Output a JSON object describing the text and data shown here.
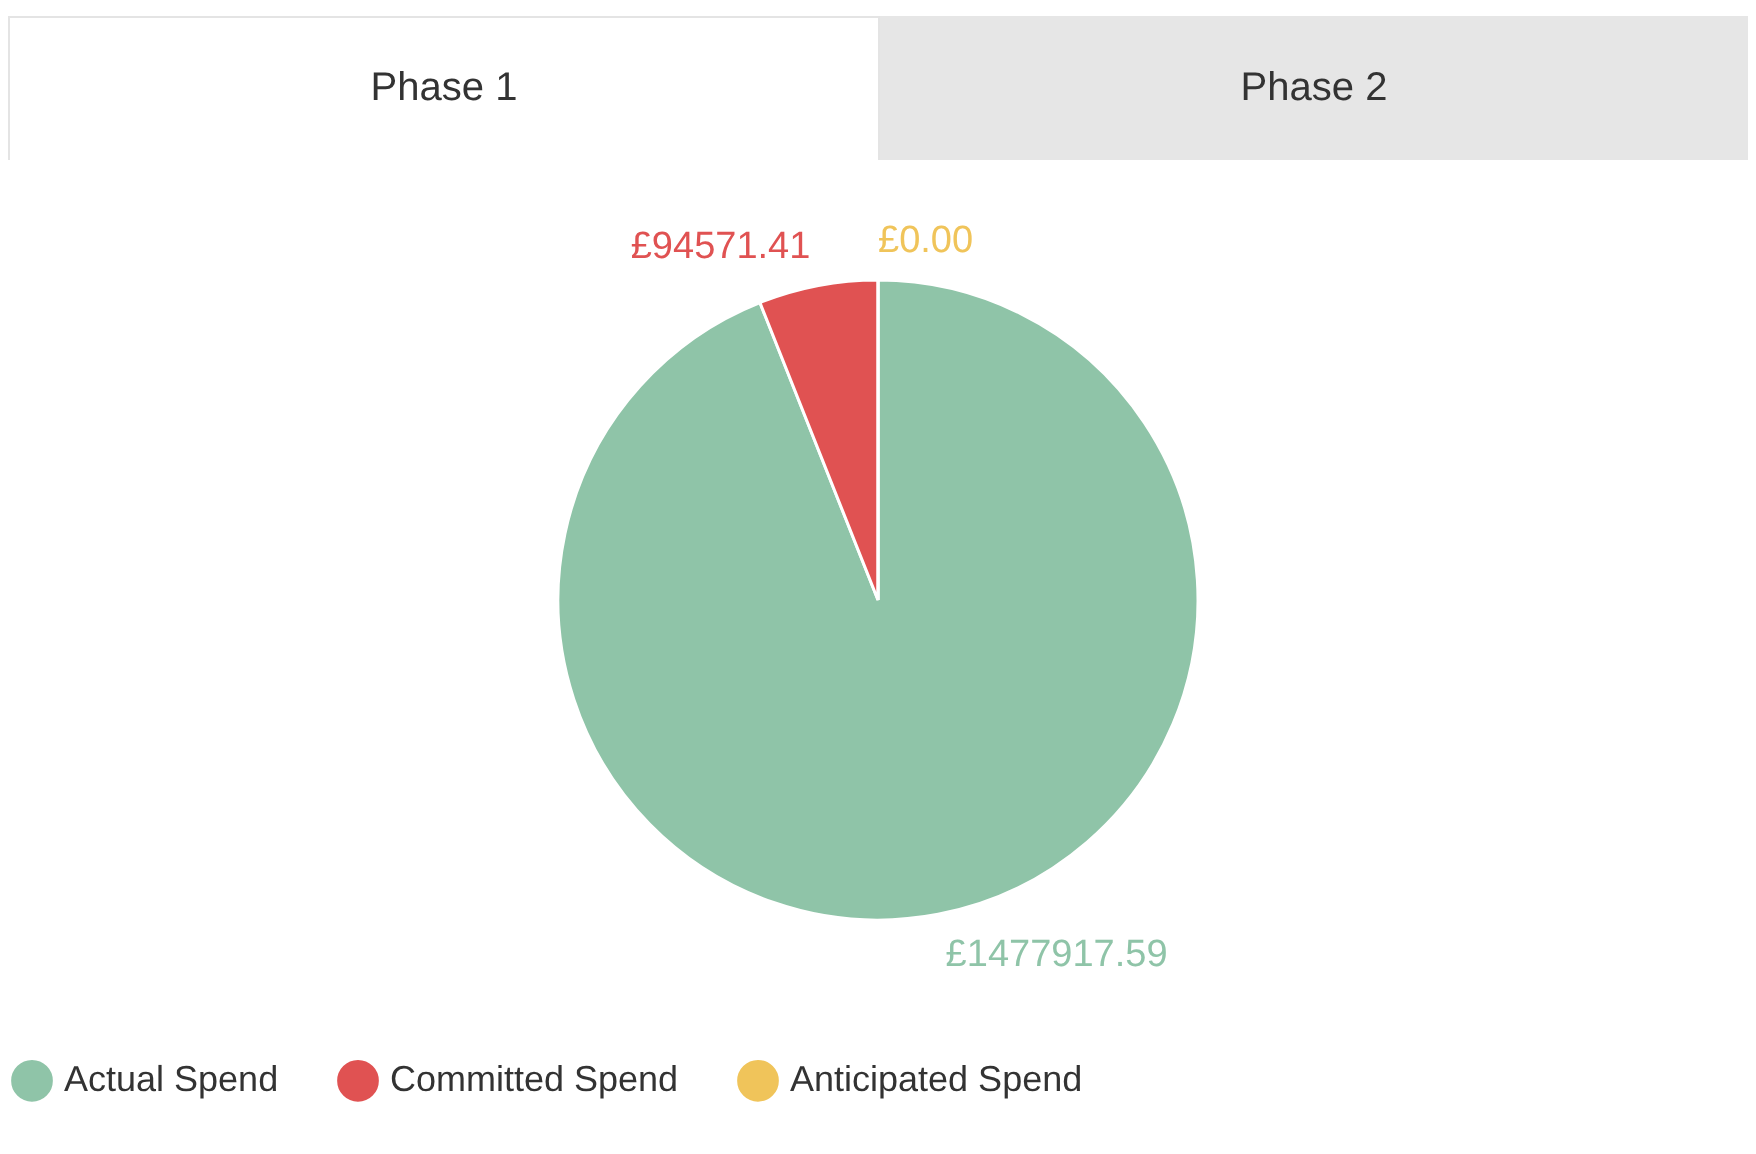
{
  "chart_data": {
    "type": "pie",
    "categories": [
      "Actual Spend",
      "Committed Spend",
      "Anticipated Spend"
    ],
    "values": [
      1477917.59,
      94571.41,
      0
    ],
    "colors": [
      "#8fc4a8",
      "#e05252",
      "#f0c45a"
    ],
    "value_labels": [
      "£1477917.59",
      "£94571.41",
      "£0.00"
    ],
    "legend": "bottom",
    "annotations": [
      "Phase 1",
      "Phase 2"
    ]
  }
}
